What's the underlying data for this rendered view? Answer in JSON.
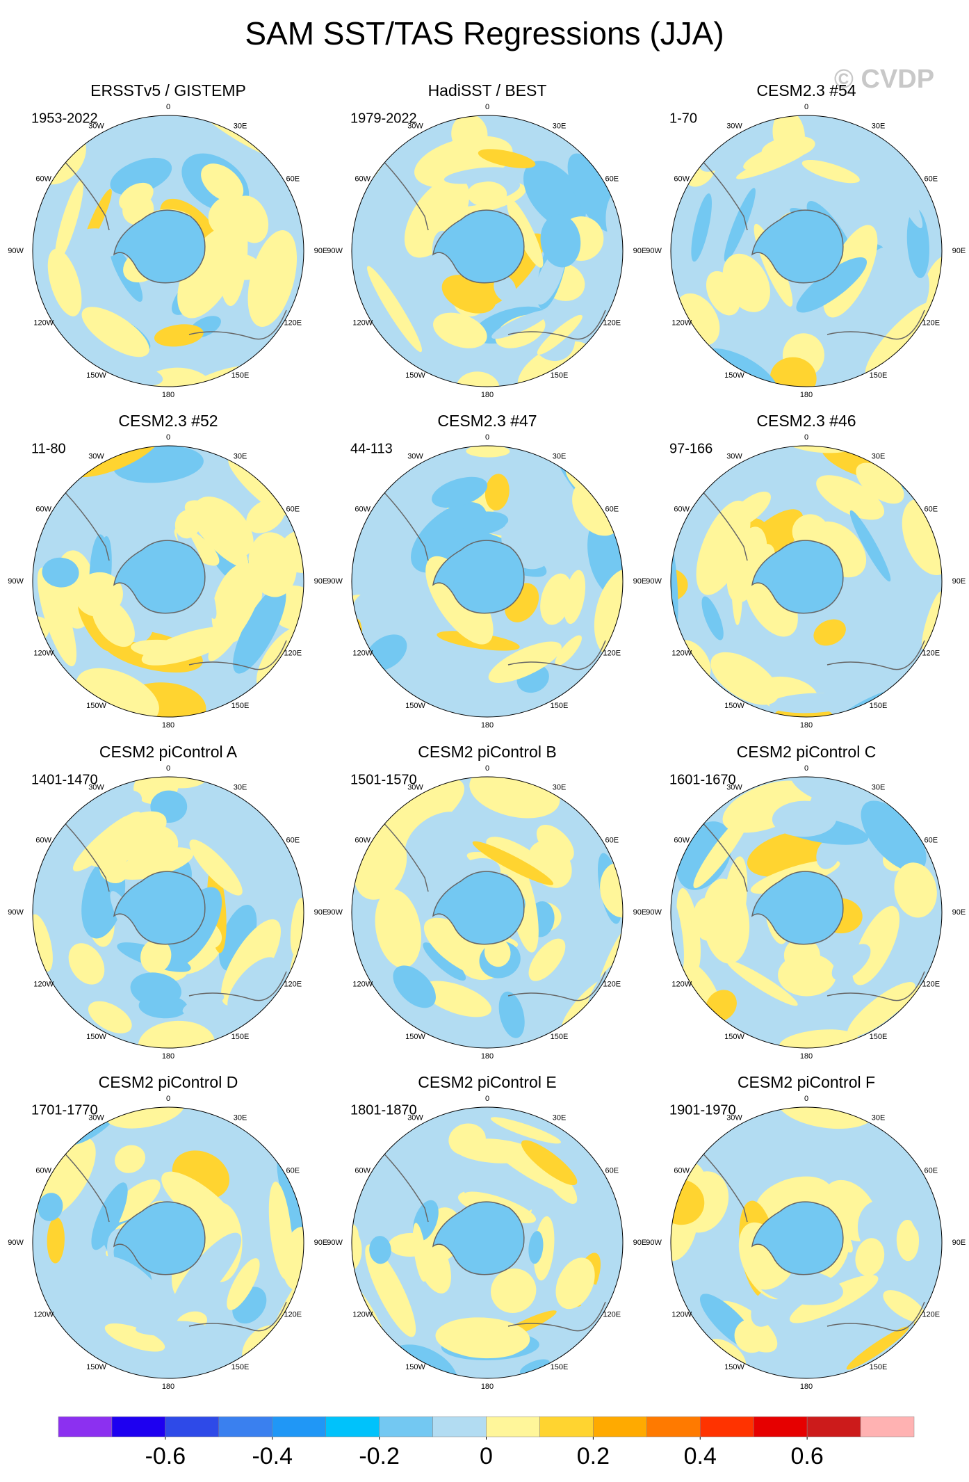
{
  "title": "SAM SST/TAS Regressions (JJA)",
  "watermark": "© CVDP",
  "lon_labels": [
    "0",
    "30E",
    "60E",
    "90E",
    "120E",
    "150E",
    "180",
    "150W",
    "120W",
    "90W",
    "60W",
    "30W"
  ],
  "panels": [
    {
      "title": "ERSSTv5 / GISTEMP",
      "period": "1953-2022"
    },
    {
      "title": "HadiSST / BEST",
      "period": "1979-2022"
    },
    {
      "title": "CESM2.3 #54",
      "period": "1-70"
    },
    {
      "title": "CESM2.3 #52",
      "period": "11-80"
    },
    {
      "title": "CESM2.3 #47",
      "period": "44-113"
    },
    {
      "title": "CESM2.3 #46",
      "period": "97-166"
    },
    {
      "title": "CESM2 piControl A",
      "period": "1401-1470"
    },
    {
      "title": "CESM2 piControl B",
      "period": "1501-1570"
    },
    {
      "title": "CESM2 piControl C",
      "period": "1601-1670"
    },
    {
      "title": "CESM2 piControl D",
      "period": "1701-1770"
    },
    {
      "title": "CESM2 piControl E",
      "period": "1801-1870"
    },
    {
      "title": "CESM2 piControl F",
      "period": "1901-1970"
    }
  ],
  "colorbar": {
    "lim": [
      -0.8,
      0.8
    ],
    "ticks": [
      -0.6,
      -0.4,
      -0.2,
      0,
      0.2,
      0.4,
      0.6
    ],
    "colors": [
      "#8c30f0",
      "#1e00f0",
      "#2e4ae8",
      "#3a80ef",
      "#2097f6",
      "#00c2fb",
      "#73c8f2",
      "#b2dcf2",
      "#fff69a",
      "#ffd430",
      "#ffaa00",
      "#ff7a00",
      "#ff3300",
      "#e60000",
      "#cc1b1b",
      "#ffb2b2"
    ]
  }
}
